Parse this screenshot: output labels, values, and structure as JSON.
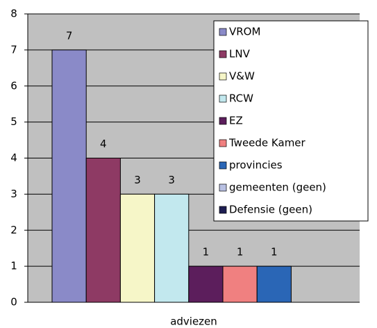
{
  "chart_data": {
    "type": "bar",
    "categories": [
      "adviezen"
    ],
    "series": [
      {
        "name": "VROM",
        "color": "#8a8ac8",
        "values": [
          7
        ]
      },
      {
        "name": "LNV",
        "color": "#8e3a64",
        "values": [
          4
        ]
      },
      {
        "name": "V&W",
        "color": "#f6f6c8",
        "values": [
          3
        ]
      },
      {
        "name": "RCW",
        "color": "#c2e8ee",
        "values": [
          3
        ]
      },
      {
        "name": "EZ",
        "color": "#5c1e5c",
        "values": [
          1
        ]
      },
      {
        "name": "Tweede Kamer",
        "color": "#f08080",
        "values": [
          1
        ]
      },
      {
        "name": "provincies",
        "color": "#2a66b6",
        "values": [
          1
        ]
      },
      {
        "name": "gemeenten (geen)",
        "color": "#b8c0e2",
        "values": [
          null
        ]
      },
      {
        "name": "Defensie (geen)",
        "color": "#1e1e52",
        "values": [
          null
        ]
      }
    ],
    "ylim": [
      0,
      8
    ],
    "yticks": [
      0,
      1,
      2,
      3,
      4,
      5,
      6,
      7,
      8
    ],
    "grid": true,
    "legend": "right"
  }
}
